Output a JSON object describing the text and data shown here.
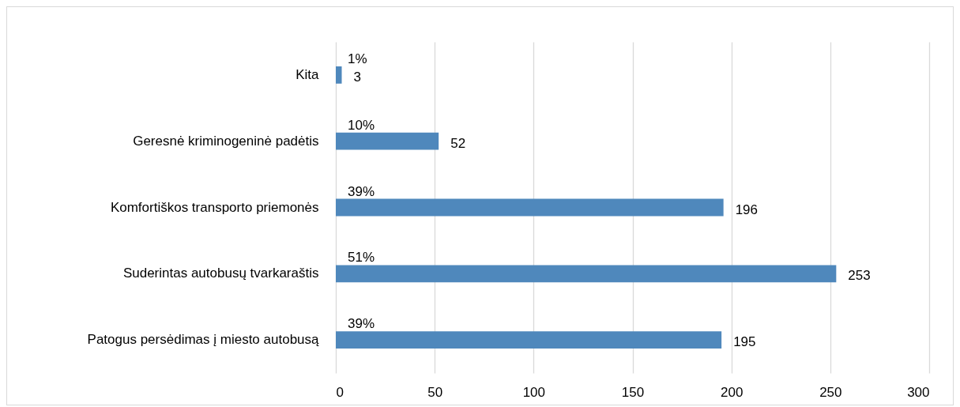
{
  "chart_data": {
    "type": "bar",
    "orientation": "horizontal",
    "categories": [
      "Kita",
      "Geresnė kriminogeninė padėtis",
      "Komfortiškos transporto priemonės",
      "Suderintas autobusų tvarkaraštis",
      "Patogus persėdimas į miesto autobusą"
    ],
    "values": [
      3,
      52,
      196,
      253,
      195
    ],
    "color": "#4f88bc",
    "xlim": [
      0,
      300
    ],
    "xticks": [
      0,
      50,
      100,
      150,
      200,
      250,
      300
    ],
    "grid": "x",
    "data_labels": true,
    "annotations": [
      "1%",
      "10%",
      "39%",
      "51%",
      "39%"
    ]
  }
}
